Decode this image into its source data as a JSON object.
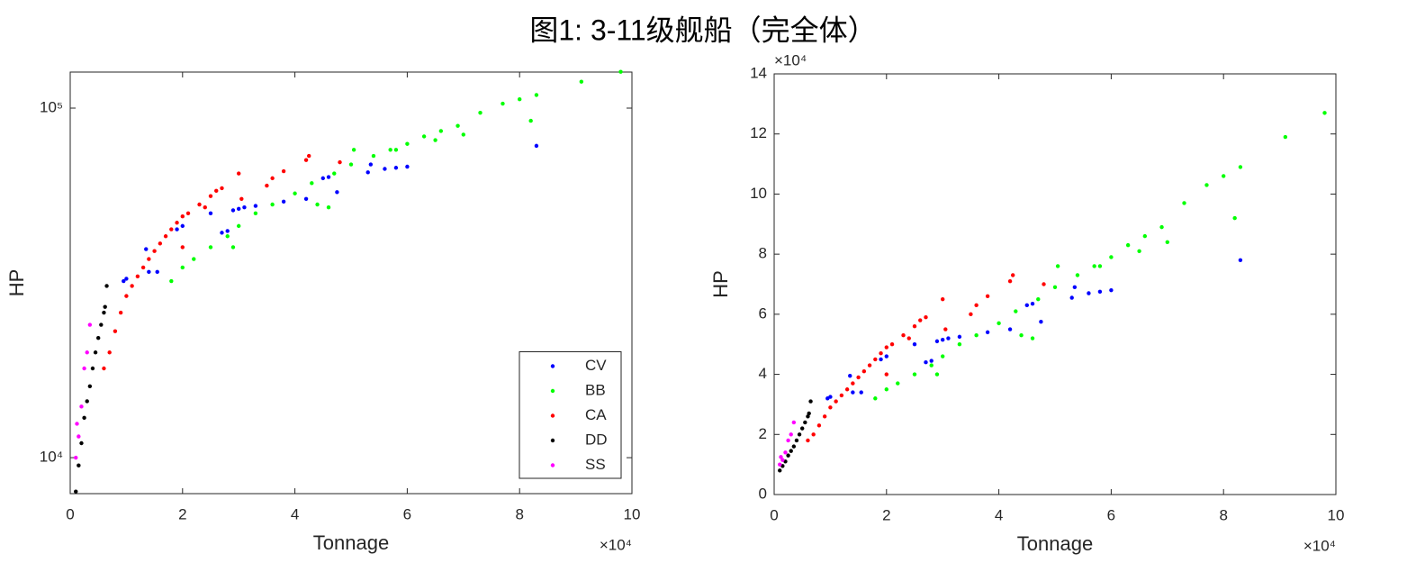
{
  "title": "图1: 3-11级舰船（完全体）",
  "chart_data": [
    {
      "type": "scatter",
      "x_label": "Tonnage",
      "y_label": "HP",
      "x_multiplier": "×10⁴",
      "log_y": true,
      "legend": "lower right",
      "xlim": [
        0,
        10
      ],
      "xticks": [
        0,
        2,
        4,
        6,
        8,
        10
      ],
      "ylim": [
        7890,
        126800
      ],
      "yticks": [
        {
          "value": 10000,
          "label": "10⁴"
        },
        {
          "value": 100000,
          "label": "10⁵"
        }
      ],
      "series": [
        {
          "name": "CV",
          "color": "#0000ff",
          "x": [
            0.95,
            1.0,
            1.35,
            1.4,
            1.55,
            1.9,
            2.0,
            2.5,
            2.7,
            2.8,
            2.9,
            3.0,
            3.1,
            3.3,
            3.8,
            4.2,
            4.5,
            4.6,
            4.75,
            5.3,
            5.35,
            5.6,
            5.8,
            6.0,
            8.3
          ],
          "values": [
            32000,
            32500,
            39500,
            34000,
            34000,
            45000,
            46000,
            50000,
            44000,
            44500,
            51000,
            51500,
            52000,
            52500,
            54000,
            55000,
            63000,
            63500,
            57500,
            65500,
            69000,
            67000,
            67500,
            68000,
            78000
          ]
        },
        {
          "name": "BB",
          "color": "#00ff00",
          "x": [
            1.8,
            2.0,
            2.2,
            2.5,
            2.8,
            2.9,
            3.0,
            3.3,
            3.6,
            4.0,
            4.3,
            4.4,
            4.6,
            4.7,
            5.0,
            5.05,
            5.4,
            5.7,
            5.8,
            6.0,
            6.3,
            6.5,
            6.6,
            6.9,
            7.0,
            7.3,
            7.7,
            8.0,
            8.2,
            8.3,
            9.1,
            9.8
          ],
          "values": [
            32000,
            35000,
            37000,
            40000,
            43000,
            40000,
            46000,
            50000,
            53000,
            57000,
            61000,
            53000,
            52000,
            65000,
            69000,
            76000,
            73000,
            76000,
            76000,
            79000,
            83000,
            81000,
            86000,
            89000,
            84000,
            97000,
            103000,
            106000,
            92000,
            109000,
            119000,
            127000
          ]
        },
        {
          "name": "CA",
          "color": "#ff0000",
          "x": [
            0.6,
            0.7,
            0.8,
            0.9,
            1.0,
            1.1,
            1.2,
            1.3,
            1.4,
            1.5,
            1.6,
            1.7,
            1.8,
            1.9,
            2.0,
            2.0,
            2.1,
            2.3,
            2.4,
            2.5,
            2.6,
            2.7,
            3.0,
            3.05,
            3.5,
            3.6,
            3.8,
            4.2,
            4.25,
            4.8
          ],
          "values": [
            18000,
            20000,
            23000,
            26000,
            29000,
            31000,
            33000,
            35000,
            37000,
            39000,
            41000,
            43000,
            45000,
            47000,
            40000,
            49000,
            50000,
            53000,
            52000,
            56000,
            58000,
            59000,
            65000,
            55000,
            60000,
            63000,
            66000,
            71000,
            73000,
            70000
          ]
        },
        {
          "name": "DD",
          "color": "#000000",
          "x": [
            0.1,
            0.15,
            0.2,
            0.25,
            0.3,
            0.35,
            0.4,
            0.45,
            0.5,
            0.55,
            0.6,
            0.62,
            0.65
          ],
          "values": [
            8000,
            9500,
            11000,
            13000,
            14500,
            16000,
            18000,
            20000,
            22000,
            24000,
            26000,
            27000,
            31000
          ]
        },
        {
          "name": "SS",
          "color": "#ff00ff",
          "x": [
            0.1,
            0.12,
            0.15,
            0.2,
            0.25,
            0.3,
            0.35
          ],
          "values": [
            10000,
            12500,
            11500,
            14000,
            18000,
            20000,
            24000
          ]
        }
      ]
    },
    {
      "type": "scatter",
      "x_label": "Tonnage",
      "y_label": "HP",
      "x_multiplier": "×10⁴",
      "y_multiplier": "×10⁴",
      "xlim": [
        0,
        10
      ],
      "xticks": [
        0,
        2,
        4,
        6,
        8,
        10
      ],
      "ylim": [
        0,
        14
      ],
      "yticks": [
        0,
        2,
        4,
        6,
        8,
        10,
        12,
        14
      ],
      "series": [
        {
          "color": "#0000ff",
          "x": [
            0.95,
            1.0,
            1.35,
            1.4,
            1.55,
            1.9,
            2.0,
            2.5,
            2.7,
            2.8,
            2.9,
            3.0,
            3.1,
            3.3,
            3.8,
            4.2,
            4.5,
            4.6,
            4.75,
            5.3,
            5.35,
            5.6,
            5.8,
            6.0,
            8.3
          ],
          "values": [
            3.2,
            3.25,
            3.95,
            3.4,
            3.4,
            4.5,
            4.6,
            5.0,
            4.4,
            4.45,
            5.1,
            5.15,
            5.2,
            5.25,
            5.4,
            5.5,
            6.3,
            6.35,
            5.75,
            6.55,
            6.9,
            6.7,
            6.75,
            6.8,
            7.8
          ]
        },
        {
          "color": "#00ff00",
          "x": [
            1.8,
            2.0,
            2.2,
            2.5,
            2.8,
            2.9,
            3.0,
            3.3,
            3.6,
            4.0,
            4.3,
            4.4,
            4.6,
            4.7,
            5.0,
            5.05,
            5.4,
            5.7,
            5.8,
            6.0,
            6.3,
            6.5,
            6.6,
            6.9,
            7.0,
            7.3,
            7.7,
            8.0,
            8.2,
            8.3,
            9.1,
            9.8
          ],
          "values": [
            3.2,
            3.5,
            3.7,
            4.0,
            4.3,
            4.0,
            4.6,
            5.0,
            5.3,
            5.7,
            6.1,
            5.3,
            5.2,
            6.5,
            6.9,
            7.6,
            7.3,
            7.6,
            7.6,
            7.9,
            8.3,
            8.1,
            8.6,
            8.9,
            8.4,
            9.7,
            10.3,
            10.6,
            9.2,
            10.9,
            11.9,
            12.7
          ]
        },
        {
          "color": "#ff0000",
          "x": [
            0.6,
            0.7,
            0.8,
            0.9,
            1.0,
            1.1,
            1.2,
            1.3,
            1.4,
            1.5,
            1.6,
            1.7,
            1.8,
            1.9,
            2.0,
            2.0,
            2.1,
            2.3,
            2.4,
            2.5,
            2.6,
            2.7,
            3.0,
            3.05,
            3.5,
            3.6,
            3.8,
            4.2,
            4.25,
            4.8
          ],
          "values": [
            1.8,
            2.0,
            2.3,
            2.6,
            2.9,
            3.1,
            3.3,
            3.5,
            3.7,
            3.9,
            4.1,
            4.3,
            4.5,
            4.7,
            4.0,
            4.9,
            5.0,
            5.3,
            5.2,
            5.6,
            5.8,
            5.9,
            6.5,
            5.5,
            6.0,
            6.3,
            6.6,
            7.1,
            7.3,
            7.0
          ]
        },
        {
          "color": "#000000",
          "x": [
            0.1,
            0.15,
            0.2,
            0.25,
            0.3,
            0.35,
            0.4,
            0.45,
            0.5,
            0.55,
            0.6,
            0.62,
            0.65
          ],
          "values": [
            0.8,
            0.95,
            1.1,
            1.3,
            1.45,
            1.6,
            1.8,
            2.0,
            2.2,
            2.4,
            2.6,
            2.7,
            3.1
          ]
        },
        {
          "color": "#ff00ff",
          "x": [
            0.1,
            0.12,
            0.15,
            0.2,
            0.25,
            0.3,
            0.35
          ],
          "values": [
            1.0,
            1.25,
            1.15,
            1.4,
            1.8,
            2.0,
            2.4
          ]
        }
      ]
    }
  ]
}
